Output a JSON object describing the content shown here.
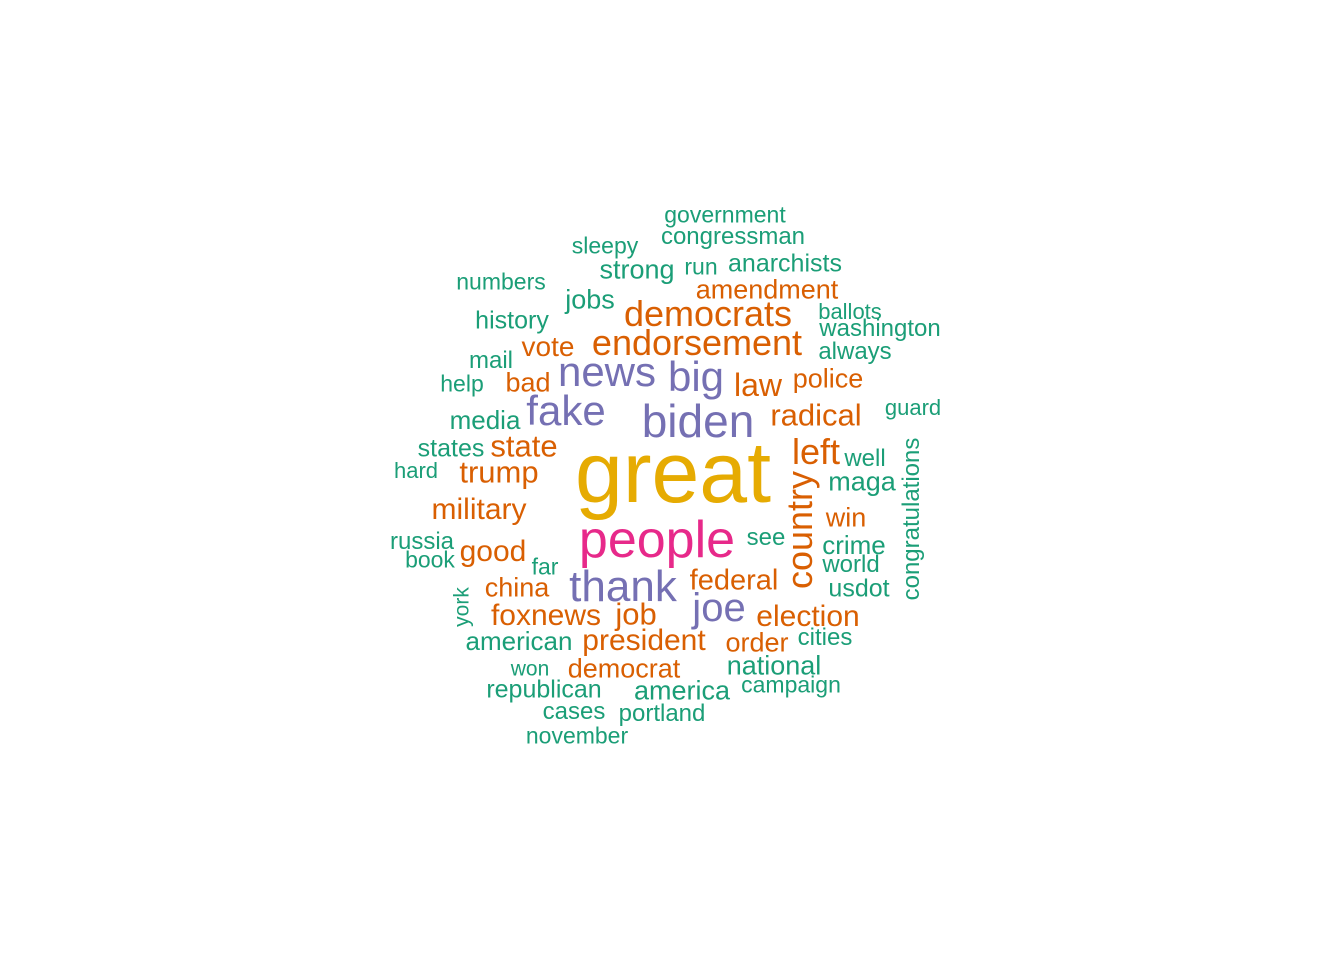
{
  "colors": {
    "gold": "#E6AB02",
    "magenta": "#E7298A",
    "purple": "#7570B3",
    "orange": "#D95F02",
    "teal": "#1B9E77",
    "background": "#FFFFFF"
  },
  "words": [
    {
      "text": "great",
      "color": "gold"
    },
    {
      "text": "people",
      "color": "magenta"
    },
    {
      "text": "biden",
      "color": "purple"
    },
    {
      "text": "thank",
      "color": "purple"
    },
    {
      "text": "news",
      "color": "purple"
    },
    {
      "text": "fake",
      "color": "purple"
    },
    {
      "text": "big",
      "color": "purple"
    },
    {
      "text": "joe",
      "color": "purple"
    },
    {
      "text": "endorsement",
      "color": "orange"
    },
    {
      "text": "democrats",
      "color": "orange"
    },
    {
      "text": "country",
      "color": "orange"
    },
    {
      "text": "left",
      "color": "orange"
    },
    {
      "text": "radical",
      "color": "orange"
    },
    {
      "text": "law",
      "color": "orange"
    },
    {
      "text": "state",
      "color": "orange"
    },
    {
      "text": "trump",
      "color": "orange"
    },
    {
      "text": "military",
      "color": "orange"
    },
    {
      "text": "president",
      "color": "orange"
    },
    {
      "text": "election",
      "color": "orange"
    },
    {
      "text": "job",
      "color": "orange"
    },
    {
      "text": "foxnews",
      "color": "orange"
    },
    {
      "text": "federal",
      "color": "orange"
    },
    {
      "text": "good",
      "color": "orange"
    },
    {
      "text": "vote",
      "color": "orange"
    },
    {
      "text": "amendment",
      "color": "orange"
    },
    {
      "text": "police",
      "color": "orange"
    },
    {
      "text": "win",
      "color": "orange"
    },
    {
      "text": "china",
      "color": "orange"
    },
    {
      "text": "bad",
      "color": "orange"
    },
    {
      "text": "democrat",
      "color": "orange"
    },
    {
      "text": "order",
      "color": "orange"
    },
    {
      "text": "government",
      "color": "teal"
    },
    {
      "text": "congressman",
      "color": "teal"
    },
    {
      "text": "sleepy",
      "color": "teal"
    },
    {
      "text": "strong",
      "color": "teal"
    },
    {
      "text": "run",
      "color": "teal"
    },
    {
      "text": "anarchists",
      "color": "teal"
    },
    {
      "text": "numbers",
      "color": "teal"
    },
    {
      "text": "jobs",
      "color": "teal"
    },
    {
      "text": "ballots",
      "color": "teal"
    },
    {
      "text": "washington",
      "color": "teal"
    },
    {
      "text": "history",
      "color": "teal"
    },
    {
      "text": "always",
      "color": "teal"
    },
    {
      "text": "mail",
      "color": "teal"
    },
    {
      "text": "help",
      "color": "teal"
    },
    {
      "text": "guard",
      "color": "teal"
    },
    {
      "text": "media",
      "color": "teal"
    },
    {
      "text": "states",
      "color": "teal"
    },
    {
      "text": "well",
      "color": "teal"
    },
    {
      "text": "hard",
      "color": "teal"
    },
    {
      "text": "maga",
      "color": "teal"
    },
    {
      "text": "congratulations",
      "color": "teal"
    },
    {
      "text": "russia",
      "color": "teal"
    },
    {
      "text": "see",
      "color": "teal"
    },
    {
      "text": "crime",
      "color": "teal"
    },
    {
      "text": "book",
      "color": "teal"
    },
    {
      "text": "far",
      "color": "teal"
    },
    {
      "text": "world",
      "color": "teal"
    },
    {
      "text": "usdot",
      "color": "teal"
    },
    {
      "text": "york",
      "color": "teal"
    },
    {
      "text": "american",
      "color": "teal"
    },
    {
      "text": "cities",
      "color": "teal"
    },
    {
      "text": "national",
      "color": "teal"
    },
    {
      "text": "won",
      "color": "teal"
    },
    {
      "text": "republican",
      "color": "teal"
    },
    {
      "text": "america",
      "color": "teal"
    },
    {
      "text": "campaign",
      "color": "teal"
    },
    {
      "text": "cases",
      "color": "teal"
    },
    {
      "text": "portland",
      "color": "teal"
    },
    {
      "text": "november",
      "color": "teal"
    }
  ]
}
